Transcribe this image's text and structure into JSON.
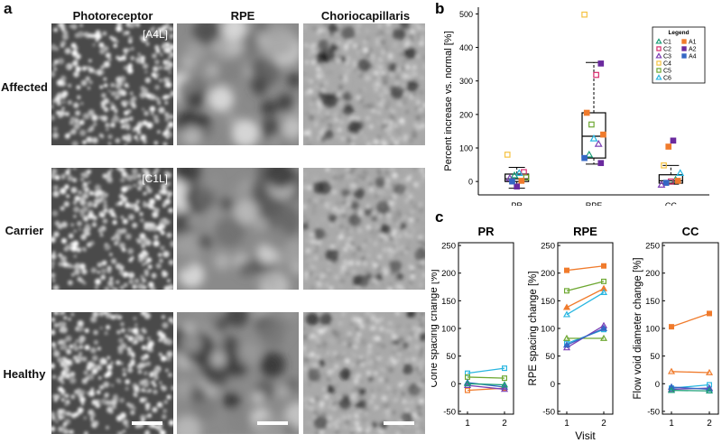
{
  "panel_a": {
    "letter": "a",
    "columns": [
      "Photoreceptor",
      "RPE",
      "Choriocapillaris"
    ],
    "rows": [
      {
        "label": "Affected",
        "tag": "[A4L]"
      },
      {
        "label": "Carrier",
        "tag": "[C1L]"
      },
      {
        "label": "Healthy",
        "tag": ""
      }
    ]
  },
  "chart_data": [
    {
      "id": "b",
      "type": "scatter",
      "letter": "b",
      "ylabel": "Percent increase vs. normal [%]",
      "categories": [
        "PR",
        "RPE",
        "CC"
      ],
      "ylim": [
        -40,
        520
      ],
      "yticks": [
        0,
        100,
        200,
        300,
        400,
        500
      ],
      "legend_title": "Legend",
      "legend": [
        {
          "name": "C1",
          "color": "#1a9e77",
          "marker": "triangle"
        },
        {
          "name": "C2",
          "color": "#d62a6b",
          "marker": "square"
        },
        {
          "name": "C3",
          "color": "#7b3fb5",
          "marker": "triangle"
        },
        {
          "name": "C4",
          "color": "#f5c242",
          "marker": "square"
        },
        {
          "name": "C5",
          "color": "#6ea832",
          "marker": "square"
        },
        {
          "name": "C6",
          "color": "#29b6e0",
          "marker": "triangle"
        },
        {
          "name": "A1",
          "color": "#f07b2c",
          "marker": "filled-square"
        },
        {
          "name": "A2",
          "color": "#6b2a9e",
          "marker": "filled-square"
        },
        {
          "name": "A4",
          "color": "#3567c4",
          "marker": "filled-square"
        }
      ],
      "boxes": [
        {
          "category": "PR",
          "q1": 0,
          "median": 8,
          "q3": 22,
          "whisker_low": -20,
          "whisker_high": 42
        },
        {
          "category": "RPE",
          "q1": 70,
          "median": 135,
          "q3": 205,
          "whisker_low": 52,
          "whisker_high": 355
        },
        {
          "category": "CC",
          "q1": -5,
          "median": 2,
          "q3": 20,
          "whisker_low": -8,
          "whisker_high": 48
        }
      ],
      "points": [
        {
          "category": "PR",
          "series": "C4",
          "y": 80
        },
        {
          "category": "PR",
          "series": "C2",
          "y": 28
        },
        {
          "category": "PR",
          "series": "C6",
          "y": 25
        },
        {
          "category": "PR",
          "series": "C1",
          "y": 18
        },
        {
          "category": "PR",
          "series": "C3",
          "y": 10
        },
        {
          "category": "PR",
          "series": "C5",
          "y": 12
        },
        {
          "category": "PR",
          "series": "A1",
          "y": 2
        },
        {
          "category": "PR",
          "series": "A2",
          "y": -15
        },
        {
          "category": "PR",
          "series": "A4",
          "y": 0
        },
        {
          "category": "RPE",
          "series": "C4",
          "y": 498
        },
        {
          "category": "RPE",
          "series": "A2",
          "y": 352
        },
        {
          "category": "RPE",
          "series": "C2",
          "y": 318
        },
        {
          "category": "RPE",
          "series": "C5",
          "y": 170
        },
        {
          "category": "RPE",
          "series": "A1",
          "y": 205
        },
        {
          "category": "RPE",
          "series": "A1",
          "y": 140
        },
        {
          "category": "RPE",
          "series": "C3",
          "y": 112
        },
        {
          "category": "RPE",
          "series": "C6",
          "y": 128
        },
        {
          "category": "RPE",
          "series": "C1",
          "y": 80
        },
        {
          "category": "RPE",
          "series": "A4",
          "y": 70
        },
        {
          "category": "RPE",
          "series": "A2",
          "y": 55
        },
        {
          "category": "CC",
          "series": "A2",
          "y": 122
        },
        {
          "category": "CC",
          "series": "A1",
          "y": 104
        },
        {
          "category": "CC",
          "series": "C4",
          "y": 48
        },
        {
          "category": "CC",
          "series": "C6",
          "y": 25
        },
        {
          "category": "CC",
          "series": "C1",
          "y": 5
        },
        {
          "category": "CC",
          "series": "C2",
          "y": 0
        },
        {
          "category": "CC",
          "series": "A4",
          "y": -4
        },
        {
          "category": "CC",
          "series": "C3",
          "y": -10
        },
        {
          "category": "CC",
          "series": "A1",
          "y": 2
        }
      ]
    },
    {
      "id": "c-pr",
      "type": "line",
      "letter": "c",
      "title": "PR",
      "ylabel": "Cone spacing change [%]",
      "xlabel": "",
      "x": [
        1,
        2
      ],
      "ylim": [
        -55,
        255
      ],
      "yticks": [
        -50,
        0,
        50,
        100,
        150,
        200,
        250
      ],
      "series": [
        {
          "color": "#29b6e0",
          "marker": "square",
          "values": [
            19,
            28
          ]
        },
        {
          "color": "#6ea832",
          "marker": "square",
          "values": [
            12,
            10
          ]
        },
        {
          "color": "#f07b2c",
          "marker": "square",
          "values": [
            -12,
            -8
          ]
        },
        {
          "color": "#3567c4",
          "marker": "triangle",
          "values": [
            2,
            -6
          ]
        },
        {
          "color": "#7b3fb5",
          "marker": "triangle",
          "values": [
            -3,
            -10
          ]
        },
        {
          "color": "#1a9e77",
          "marker": "triangle",
          "values": [
            0,
            -2
          ]
        }
      ]
    },
    {
      "id": "c-rpe",
      "type": "line",
      "title": "RPE",
      "ylabel": "RPE spacing change [%]",
      "xlabel": "Visit",
      "x": [
        1,
        2
      ],
      "ylim": [
        -55,
        255
      ],
      "yticks": [
        -50,
        0,
        50,
        100,
        150,
        200,
        250
      ],
      "series": [
        {
          "color": "#f07b2c",
          "marker": "filled-square",
          "values": [
            205,
            213
          ]
        },
        {
          "color": "#6ea832",
          "marker": "square",
          "values": [
            168,
            185
          ]
        },
        {
          "color": "#f07b2c",
          "marker": "filled-triangle",
          "values": [
            138,
            172
          ]
        },
        {
          "color": "#29b6e0",
          "marker": "triangle",
          "values": [
            125,
            165
          ]
        },
        {
          "color": "#29b6e0",
          "marker": "square",
          "values": [
            73,
            98
          ]
        },
        {
          "color": "#6ea832",
          "marker": "triangle",
          "values": [
            82,
            82
          ]
        },
        {
          "color": "#7b3fb5",
          "marker": "triangle",
          "values": [
            65,
            105
          ]
        },
        {
          "color": "#3567c4",
          "marker": "filled-triangle",
          "values": [
            70,
            100
          ]
        }
      ]
    },
    {
      "id": "c-cc",
      "type": "line",
      "title": "CC",
      "ylabel": "Flow void diameter change [%]",
      "xlabel": "",
      "x": [
        1,
        2
      ],
      "ylim": [
        -55,
        255
      ],
      "yticks": [
        -50,
        0,
        50,
        100,
        150,
        200,
        250
      ],
      "series": [
        {
          "color": "#f07b2c",
          "marker": "filled-square",
          "values": [
            103,
            127
          ]
        },
        {
          "color": "#f07b2c",
          "marker": "triangle",
          "values": [
            22,
            20
          ]
        },
        {
          "color": "#29b6e0",
          "marker": "square",
          "values": [
            -8,
            -2
          ]
        },
        {
          "color": "#7b3fb5",
          "marker": "triangle",
          "values": [
            -10,
            -8
          ]
        },
        {
          "color": "#3567c4",
          "marker": "filled-triangle",
          "values": [
            -6,
            -10
          ]
        },
        {
          "color": "#1a9e77",
          "marker": "triangle",
          "values": [
            -12,
            -13
          ]
        }
      ]
    }
  ],
  "panel_c": {
    "letter": "c"
  }
}
